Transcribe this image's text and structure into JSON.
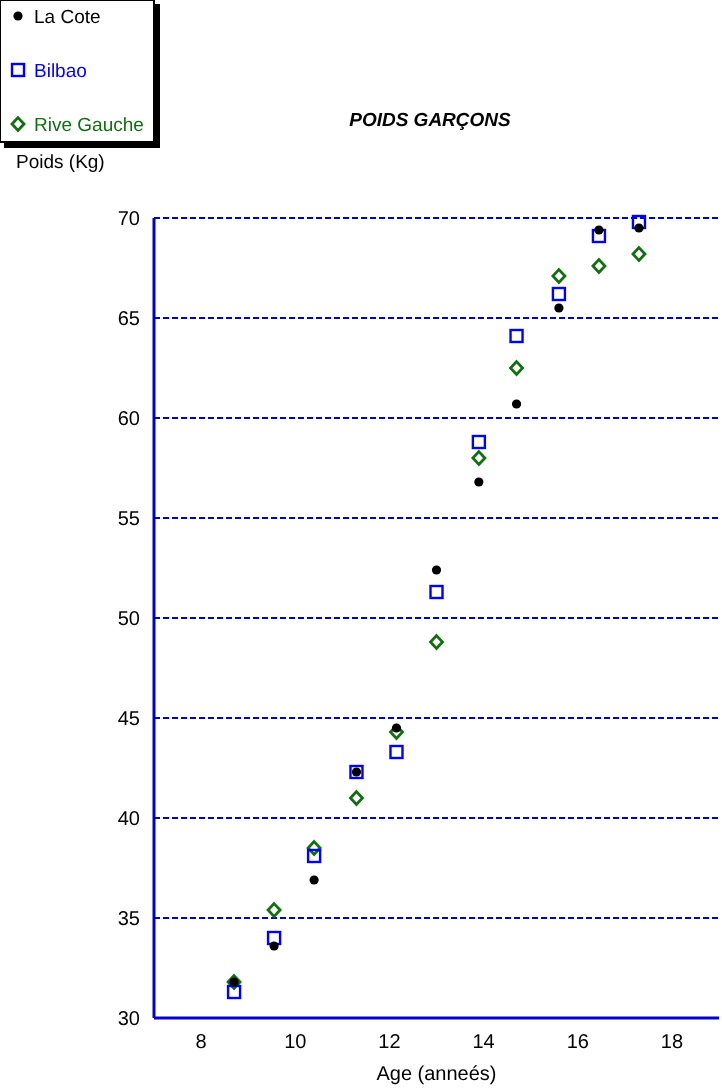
{
  "chart_data": {
    "type": "scatter",
    "title": "POIDS GARÇONS",
    "xlabel": "Age (anneés)",
    "ylabel": "Poids (Kg)",
    "xlim": [
      7,
      19
    ],
    "xticks": [
      8,
      10,
      12,
      14,
      16,
      18
    ],
    "ylim": [
      30,
      70
    ],
    "yticks": [
      30,
      35,
      40,
      45,
      50,
      55,
      60,
      65,
      70
    ],
    "grid": "y",
    "legend": "top left",
    "series": [
      {
        "name": "La Cote",
        "color": "#000000",
        "marker": "circle",
        "x": [
          8.7,
          9.55,
          10.4,
          11.3,
          12.15,
          13.0,
          13.9,
          14.7,
          15.6,
          16.45,
          17.3
        ],
        "values": [
          31.8,
          33.6,
          36.9,
          42.3,
          44.5,
          52.4,
          56.8,
          60.7,
          65.5,
          69.4,
          69.5
        ]
      },
      {
        "name": "Bilbao",
        "color": "#0000ff",
        "marker": "square",
        "x": [
          8.7,
          9.55,
          10.4,
          11.3,
          12.15,
          13.0,
          13.9,
          14.7,
          15.6,
          16.45,
          17.3
        ],
        "values": [
          31.3,
          34.0,
          38.1,
          42.3,
          43.3,
          51.3,
          58.8,
          64.1,
          66.2,
          69.1,
          69.8
        ]
      },
      {
        "name": "Rive Gauche",
        "color": "#107010",
        "marker": "diamond",
        "x": [
          8.7,
          9.55,
          10.4,
          11.3,
          12.15,
          13.0,
          13.9,
          14.7,
          15.6,
          16.45,
          17.3
        ],
        "values": [
          31.8,
          35.4,
          38.5,
          41.0,
          44.3,
          48.8,
          58.0,
          62.5,
          67.1,
          67.6,
          68.2
        ]
      }
    ]
  }
}
